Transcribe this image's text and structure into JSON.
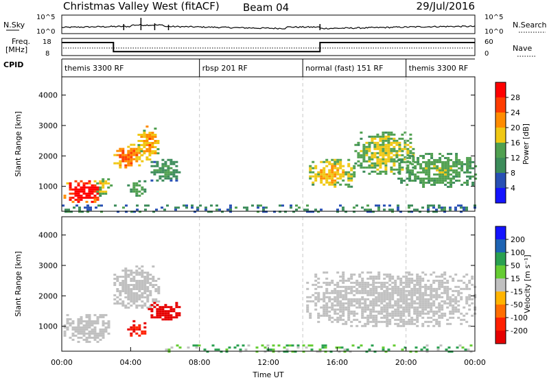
{
  "header": {
    "station": "Christmas Valley West (fitACF)",
    "beam": "Beam 04",
    "date": "29/Jul/2016"
  },
  "strip_panels": {
    "nsky": {
      "label": "N.Sky",
      "tick_top": "10^5",
      "tick_bottom": "10^0"
    },
    "nsearch": {
      "label": "N.Search",
      "tick_top": "10^5",
      "tick_bottom": "10^0"
    },
    "freq": {
      "label_1": "Freq.",
      "label_2": "[MHz]",
      "tick_top": "18",
      "tick_bottom": "8",
      "steps": [
        {
          "t": 0,
          "v": 15.6
        },
        {
          "t": 3,
          "v": 10.3
        },
        {
          "t": 15,
          "v": 15.6
        },
        {
          "t": 24,
          "v": 15.6
        }
      ]
    },
    "nave": {
      "label": "Nave",
      "tick_top": "60",
      "tick_bottom": "0"
    },
    "cpid": {
      "label": "CPID",
      "segments": [
        {
          "t": 0,
          "name": "themis 3300 RF"
        },
        {
          "t": 8,
          "name": "rbsp 201 RF"
        },
        {
          "t": 14,
          "name": "normal (fast) 151 RF"
        },
        {
          "t": 20,
          "name": "themis 3300 RF"
        }
      ]
    }
  },
  "chart_data": [
    {
      "type": "heatmap",
      "title": "",
      "xlabel": "Time UT",
      "ylabel": "Slant Range [km]",
      "xlim": [
        0,
        24
      ],
      "ylim": [
        180,
        4600
      ],
      "yticks": [
        "1000",
        "2000",
        "3000",
        "4000"
      ],
      "colorbar": {
        "label": "Power [dB]",
        "ticks": [
          "4",
          "8",
          "12",
          "16",
          "20",
          "24",
          "28"
        ],
        "colors": [
          "#1414ff",
          "#2850b4",
          "#3c8c5a",
          "#50a050",
          "#f0c814",
          "#ff8c00",
          "#ff3c00",
          "#ff0000"
        ]
      },
      "regions": [
        {
          "t0": 0.1,
          "t1": 2.2,
          "r0": 500,
          "r1": 1200,
          "power": 28
        },
        {
          "t0": 2.0,
          "t1": 2.8,
          "r0": 700,
          "r1": 1400,
          "power": 14
        },
        {
          "t0": 3.0,
          "t1": 4.6,
          "r0": 1600,
          "r1": 2400,
          "power": 20
        },
        {
          "t0": 4.4,
          "t1": 5.6,
          "r0": 1900,
          "r1": 3000,
          "power": 18
        },
        {
          "t0": 3.8,
          "t1": 4.9,
          "r0": 700,
          "r1": 1200,
          "power": 12
        },
        {
          "t0": 5.0,
          "t1": 6.8,
          "r0": 1200,
          "r1": 1900,
          "power": 10
        },
        {
          "t0": 14.2,
          "t1": 17.0,
          "r0": 1000,
          "r1": 1900,
          "power": 16
        },
        {
          "t0": 17.0,
          "t1": 20.5,
          "r0": 1400,
          "r1": 2800,
          "power": 14
        },
        {
          "t0": 19.5,
          "t1": 24.0,
          "r0": 1000,
          "r1": 2100,
          "power": 12
        },
        {
          "t0": 0.0,
          "t1": 24.0,
          "r0": 180,
          "r1": 400,
          "power": 8
        }
      ]
    },
    {
      "type": "heatmap",
      "title": "",
      "xlabel": "Time UT",
      "ylabel": "Slant Range [km]",
      "xlim": [
        0,
        24
      ],
      "ylim": [
        180,
        4600
      ],
      "yticks": [
        "1000",
        "2000",
        "3000",
        "4000"
      ],
      "xticks": [
        "00:00",
        "04:00",
        "08:00",
        "12:00",
        "16:00",
        "20:00",
        "00:00"
      ],
      "colorbar": {
        "label": "Velocity [m s⁻¹]",
        "ticks": [
          "200",
          "100",
          "50",
          "15",
          "-15",
          "-50",
          "-100",
          "-200"
        ],
        "colors": [
          "#1414ff",
          "#1e64b4",
          "#2aa050",
          "#66cc33",
          "#c0c0c0",
          "#ffb400",
          "#ff6e00",
          "#ff2000",
          "#e60000"
        ]
      },
      "regions": [
        {
          "t0": 0.1,
          "t1": 2.8,
          "r0": 500,
          "r1": 1400,
          "velocity": 0
        },
        {
          "t0": 3.0,
          "t1": 5.6,
          "r0": 1600,
          "r1": 3000,
          "velocity": 0
        },
        {
          "t0": 3.8,
          "t1": 4.9,
          "r0": 700,
          "r1": 1200,
          "velocity": -150
        },
        {
          "t0": 5.0,
          "t1": 6.8,
          "r0": 1200,
          "r1": 1800,
          "velocity": -200
        },
        {
          "t0": 14.2,
          "t1": 24.0,
          "r0": 1000,
          "r1": 2800,
          "velocity": 0
        },
        {
          "t0": 6.0,
          "t1": 24.0,
          "r0": 180,
          "r1": 400,
          "velocity": 30
        }
      ]
    }
  ]
}
